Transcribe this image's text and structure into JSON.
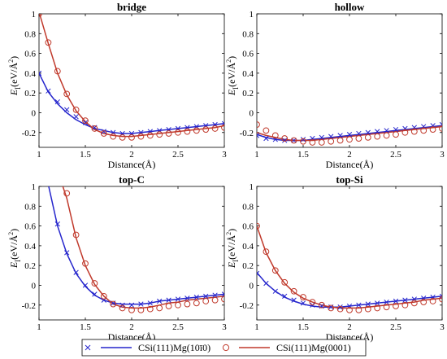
{
  "chart_data": [
    {
      "type": "line",
      "title": "bridge",
      "xlabel": "Distance(Å)",
      "ylabel_main": "E",
      "ylabel_sub": "I",
      "ylabel_unit": "(eV/Å",
      "ylabel_sup": "2",
      "ylabel_close": ")",
      "xlim": [
        1,
        3
      ],
      "ylim": [
        -0.35,
        1
      ],
      "xticks": [
        "1",
        "1.5",
        "2",
        "2.5",
        "3"
      ],
      "yticks": [
        "-0.2",
        "0",
        "0.2",
        "0.4",
        "0.6",
        "0.8",
        "1"
      ],
      "grid": false,
      "series": [
        {
          "name": "CSi(111)Mg(10ī0)",
          "marker": "x",
          "color": "#2525cc",
          "x": [
            1.0,
            1.1,
            1.2,
            1.3,
            1.4,
            1.5,
            1.6,
            1.7,
            1.8,
            1.9,
            2.0,
            2.1,
            2.2,
            2.3,
            2.4,
            2.5,
            2.6,
            2.7,
            2.8,
            2.9,
            3.0
          ],
          "marker_y": [
            0.4,
            0.22,
            0.11,
            0.03,
            -0.04,
            -0.1,
            -0.15,
            -0.19,
            -0.2,
            -0.21,
            -0.21,
            -0.2,
            -0.19,
            -0.18,
            -0.17,
            -0.16,
            -0.15,
            -0.14,
            -0.13,
            -0.12,
            -0.11
          ],
          "fit_y": [
            0.4,
            0.21,
            0.09,
            0.0,
            -0.07,
            -0.12,
            -0.16,
            -0.18,
            -0.2,
            -0.21,
            -0.21,
            -0.2,
            -0.19,
            -0.18,
            -0.17,
            -0.16,
            -0.15,
            -0.14,
            -0.13,
            -0.12,
            -0.11
          ]
        },
        {
          "name": "CSi(111)Mg(0001)",
          "marker": "o",
          "color": "#c0392b",
          "x": [
            1.0,
            1.1,
            1.2,
            1.3,
            1.4,
            1.5,
            1.6,
            1.7,
            1.8,
            1.9,
            2.0,
            2.1,
            2.2,
            2.3,
            2.4,
            2.5,
            2.6,
            2.7,
            2.8,
            2.9,
            3.0
          ],
          "marker_y": [
            1.0,
            0.71,
            0.42,
            0.19,
            0.03,
            -0.08,
            -0.16,
            -0.21,
            -0.24,
            -0.25,
            -0.25,
            -0.24,
            -0.23,
            -0.22,
            -0.21,
            -0.2,
            -0.19,
            -0.18,
            -0.17,
            -0.16,
            -0.15
          ],
          "fit_y": [
            1.02,
            0.7,
            0.4,
            0.18,
            0.02,
            -0.09,
            -0.17,
            -0.21,
            -0.23,
            -0.24,
            -0.24,
            -0.23,
            -0.22,
            -0.21,
            -0.2,
            -0.19,
            -0.18,
            -0.17,
            -0.16,
            -0.15,
            -0.13
          ]
        }
      ]
    },
    {
      "type": "line",
      "title": "hollow",
      "xlabel": "Distance(Å)",
      "ylabel_main": "E",
      "ylabel_sub": "I",
      "ylabel_unit": "(eV/Å",
      "ylabel_sup": "2",
      "ylabel_close": ")",
      "xlim": [
        1,
        3
      ],
      "ylim": [
        -0.35,
        1
      ],
      "xticks": [
        "1",
        "1.5",
        "2",
        "2.5",
        "3"
      ],
      "yticks": [
        "-0.2",
        "0",
        "0.2",
        "0.4",
        "0.6",
        "0.8",
        "1"
      ],
      "grid": false,
      "series": [
        {
          "name": "CSi(111)Mg(10ī0)",
          "marker": "x",
          "color": "#2525cc",
          "x": [
            1.0,
            1.1,
            1.2,
            1.3,
            1.4,
            1.5,
            1.6,
            1.7,
            1.8,
            1.9,
            2.0,
            2.1,
            2.2,
            2.3,
            2.4,
            2.5,
            2.6,
            2.7,
            2.8,
            2.9,
            3.0
          ],
          "marker_y": [
            -0.23,
            -0.26,
            -0.27,
            -0.28,
            -0.28,
            -0.27,
            -0.26,
            -0.25,
            -0.24,
            -0.23,
            -0.22,
            -0.21,
            -0.2,
            -0.19,
            -0.18,
            -0.17,
            -0.16,
            -0.15,
            -0.14,
            -0.13,
            -0.12
          ],
          "fit_y": [
            -0.22,
            -0.25,
            -0.27,
            -0.28,
            -0.28,
            -0.28,
            -0.27,
            -0.26,
            -0.25,
            -0.24,
            -0.23,
            -0.22,
            -0.21,
            -0.2,
            -0.19,
            -0.18,
            -0.17,
            -0.16,
            -0.15,
            -0.14,
            -0.13
          ]
        },
        {
          "name": "CSi(111)Mg(0001)",
          "marker": "o",
          "color": "#c0392b",
          "x": [
            1.0,
            1.1,
            1.2,
            1.3,
            1.4,
            1.5,
            1.6,
            1.7,
            1.8,
            1.9,
            2.0,
            2.1,
            2.2,
            2.3,
            2.4,
            2.5,
            2.6,
            2.7,
            2.8,
            2.9,
            3.0
          ],
          "marker_y": [
            -0.12,
            -0.18,
            -0.23,
            -0.26,
            -0.28,
            -0.29,
            -0.3,
            -0.3,
            -0.29,
            -0.28,
            -0.27,
            -0.26,
            -0.25,
            -0.24,
            -0.23,
            -0.22,
            -0.2,
            -0.19,
            -0.18,
            -0.17,
            -0.16
          ],
          "fit_y": [
            -0.2,
            -0.23,
            -0.25,
            -0.27,
            -0.28,
            -0.28,
            -0.28,
            -0.27,
            -0.26,
            -0.25,
            -0.24,
            -0.23,
            -0.22,
            -0.21,
            -0.2,
            -0.19,
            -0.18,
            -0.17,
            -0.16,
            -0.15,
            -0.14
          ]
        }
      ]
    },
    {
      "type": "line",
      "title": "top-C",
      "xlabel": "Distance(Å)",
      "ylabel_main": "E",
      "ylabel_sub": "I",
      "ylabel_unit": "(eV/Å",
      "ylabel_sup": "2",
      "ylabel_close": ")",
      "xlim": [
        1,
        3
      ],
      "ylim": [
        -0.35,
        1
      ],
      "xticks": [
        "1",
        "1.5",
        "2",
        "2.5",
        "3"
      ],
      "yticks": [
        "-0.2",
        "0",
        "0.2",
        "0.4",
        "0.6",
        "0.8",
        "1"
      ],
      "grid": false,
      "series": [
        {
          "name": "CSi(111)Mg(10ī0)",
          "marker": "x",
          "color": "#2525cc",
          "x": [
            1.2,
            1.3,
            1.4,
            1.5,
            1.6,
            1.7,
            1.8,
            1.9,
            2.0,
            2.1,
            2.2,
            2.3,
            2.4,
            2.5,
            2.6,
            2.7,
            2.8,
            2.9,
            3.0
          ],
          "marker_y": [
            0.62,
            0.33,
            0.13,
            0.0,
            -0.09,
            -0.15,
            -0.18,
            -0.2,
            -0.2,
            -0.19,
            -0.18,
            -0.16,
            -0.15,
            -0.14,
            -0.13,
            -0.12,
            -0.11,
            -0.1,
            -0.09
          ],
          "fit_x": [
            1.1,
            1.2,
            1.3,
            1.4,
            1.5,
            1.6,
            1.7,
            1.8,
            1.9,
            2.0,
            2.1,
            2.2,
            2.3,
            2.4,
            2.5,
            2.6,
            2.7,
            2.8,
            2.9,
            3.0
          ],
          "fit_y": [
            1.02,
            0.6,
            0.32,
            0.12,
            -0.01,
            -0.1,
            -0.15,
            -0.18,
            -0.19,
            -0.19,
            -0.19,
            -0.18,
            -0.16,
            -0.15,
            -0.14,
            -0.13,
            -0.12,
            -0.11,
            -0.1,
            -0.09
          ]
        },
        {
          "name": "CSi(111)Mg(0001)",
          "marker": "o",
          "color": "#c0392b",
          "x": [
            1.3,
            1.4,
            1.5,
            1.6,
            1.7,
            1.8,
            1.9,
            2.0,
            2.1,
            2.2,
            2.3,
            2.4,
            2.5,
            2.6,
            2.7,
            2.8,
            2.9,
            3.0
          ],
          "marker_y": [
            0.93,
            0.51,
            0.22,
            0.02,
            -0.11,
            -0.19,
            -0.23,
            -0.25,
            -0.25,
            -0.24,
            -0.23,
            -0.21,
            -0.2,
            -0.19,
            -0.18,
            -0.16,
            -0.15,
            -0.14
          ],
          "fit_x": [
            1.25,
            1.3,
            1.4,
            1.5,
            1.6,
            1.7,
            1.8,
            1.9,
            2.0,
            2.1,
            2.2,
            2.3,
            2.4,
            2.5,
            2.6,
            2.7,
            2.8,
            2.9,
            3.0
          ],
          "fit_y": [
            1.02,
            0.88,
            0.48,
            0.2,
            0.01,
            -0.11,
            -0.19,
            -0.22,
            -0.23,
            -0.23,
            -0.22,
            -0.2,
            -0.18,
            -0.17,
            -0.15,
            -0.14,
            -0.13,
            -0.12,
            -0.11
          ]
        }
      ]
    },
    {
      "type": "line",
      "title": "top-Si",
      "xlabel": "Distance(Å)",
      "ylabel_main": "E",
      "ylabel_sub": "I",
      "ylabel_unit": "(eV/Å",
      "ylabel_sup": "2",
      "ylabel_close": ")",
      "xlim": [
        1,
        3
      ],
      "ylim": [
        -0.35,
        1
      ],
      "xticks": [
        "1",
        "1.5",
        "2",
        "2.5",
        "3"
      ],
      "yticks": [
        "-0.2",
        "0",
        "0.2",
        "0.4",
        "0.6",
        "0.8",
        "1"
      ],
      "grid": false,
      "series": [
        {
          "name": "CSi(111)Mg(10ī0)",
          "marker": "x",
          "color": "#2525cc",
          "x": [
            1.0,
            1.1,
            1.2,
            1.3,
            1.4,
            1.5,
            1.6,
            1.7,
            1.8,
            1.9,
            2.0,
            2.1,
            2.2,
            2.3,
            2.4,
            2.5,
            2.6,
            2.7,
            2.8,
            2.9,
            3.0
          ],
          "marker_y": [
            0.12,
            0.02,
            -0.06,
            -0.11,
            -0.15,
            -0.18,
            -0.2,
            -0.21,
            -0.22,
            -0.22,
            -0.21,
            -0.2,
            -0.19,
            -0.18,
            -0.17,
            -0.16,
            -0.15,
            -0.14,
            -0.13,
            -0.12,
            -0.11
          ],
          "fit_y": [
            0.13,
            0.02,
            -0.06,
            -0.12,
            -0.16,
            -0.19,
            -0.21,
            -0.22,
            -0.22,
            -0.22,
            -0.21,
            -0.2,
            -0.19,
            -0.18,
            -0.17,
            -0.16,
            -0.15,
            -0.14,
            -0.13,
            -0.12,
            -0.11
          ]
        },
        {
          "name": "CSi(111)Mg(0001)",
          "marker": "o",
          "color": "#c0392b",
          "x": [
            1.0,
            1.1,
            1.2,
            1.3,
            1.4,
            1.5,
            1.6,
            1.7,
            1.8,
            1.9,
            2.0,
            2.1,
            2.2,
            2.3,
            2.4,
            2.5,
            2.6,
            2.7,
            2.8,
            2.9,
            3.0
          ],
          "marker_y": [
            0.6,
            0.34,
            0.15,
            0.03,
            -0.06,
            -0.12,
            -0.17,
            -0.2,
            -0.23,
            -0.24,
            -0.25,
            -0.25,
            -0.24,
            -0.23,
            -0.22,
            -0.21,
            -0.2,
            -0.18,
            -0.17,
            -0.16,
            -0.14
          ],
          "fit_y": [
            0.6,
            0.33,
            0.15,
            0.02,
            -0.07,
            -0.13,
            -0.17,
            -0.2,
            -0.22,
            -0.23,
            -0.23,
            -0.23,
            -0.22,
            -0.21,
            -0.2,
            -0.19,
            -0.18,
            -0.17,
            -0.15,
            -0.14,
            -0.13
          ]
        }
      ]
    }
  ],
  "legend": {
    "items": [
      {
        "label": "CSi(111)Mg(10ī0)",
        "marker": "x",
        "color": "#2525cc"
      },
      {
        "label": "CSi(111)Mg(0001)",
        "marker": "o",
        "color": "#c0392b"
      }
    ]
  }
}
